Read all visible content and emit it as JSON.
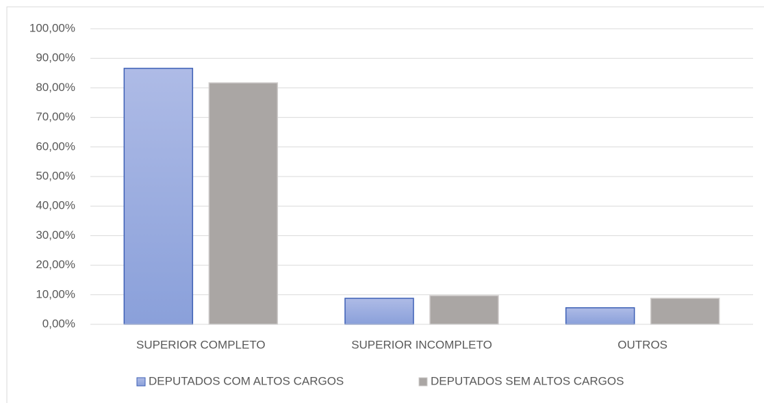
{
  "chart_data": {
    "type": "bar",
    "categories": [
      "SUPERIOR COMPLETO",
      "SUPERIOR INCOMPLETO",
      "OUTROS"
    ],
    "series": [
      {
        "name": "DEPUTADOS COM ALTOS CARGOS",
        "color": "#8fa4dc",
        "values": [
          86.6,
          8.8,
          5.6
        ]
      },
      {
        "name": "DEPUTADOS SEM ALTOS CARGOS",
        "color": "#aaa6a4",
        "values": [
          81.7,
          9.7,
          8.8
        ]
      }
    ],
    "ylim": [
      0,
      100
    ],
    "yticks": [
      {
        "value": 0,
        "label": "0,00%"
      },
      {
        "value": 10,
        "label": "10,00%"
      },
      {
        "value": 20,
        "label": "20,00%"
      },
      {
        "value": 30,
        "label": "30,00%"
      },
      {
        "value": 40,
        "label": "40,00%"
      },
      {
        "value": 50,
        "label": "50,00%"
      },
      {
        "value": 60,
        "label": "60,00%"
      },
      {
        "value": 70,
        "label": "70,00%"
      },
      {
        "value": 80,
        "label": "80,00%"
      },
      {
        "value": 90,
        "label": "90,00%"
      },
      {
        "value": 100,
        "label": "100,00%"
      }
    ],
    "grid": true,
    "legend": "bottom"
  }
}
